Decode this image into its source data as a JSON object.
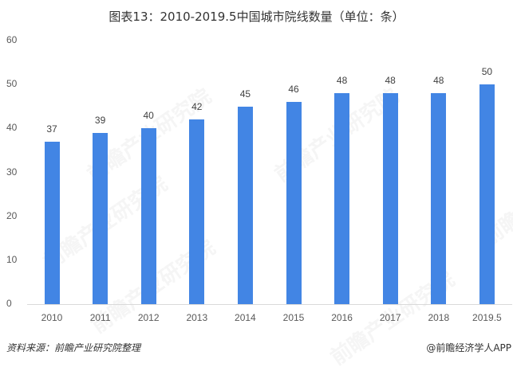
{
  "header": {
    "title": "图表13：2010-2019.5中国城市院线数量（单位：条）"
  },
  "footer": {
    "source": "资料来源：前瞻产业研究院整理",
    "credit": "@前瞻经济学人APP"
  },
  "watermark": {
    "text": "前瞻产业研究院"
  },
  "colors": {
    "bar": "#4285e4",
    "axis": "#d9d9d9",
    "text": "#595959"
  },
  "chart_data": {
    "type": "bar",
    "title": "图表13：2010-2019.5中国城市院线数量（单位：条）",
    "xlabel": "",
    "ylabel": "",
    "categories": [
      "2010",
      "2011",
      "2012",
      "2013",
      "2014",
      "2015",
      "2016",
      "2017",
      "2018",
      "2019.5"
    ],
    "values": [
      37,
      39,
      40,
      42,
      45,
      46,
      48,
      48,
      48,
      50
    ],
    "ylim": [
      0,
      60
    ],
    "yticks": [
      "0",
      "10",
      "20",
      "30",
      "40",
      "50",
      "60"
    ],
    "grid": false,
    "legend": null,
    "data_labels": true
  }
}
